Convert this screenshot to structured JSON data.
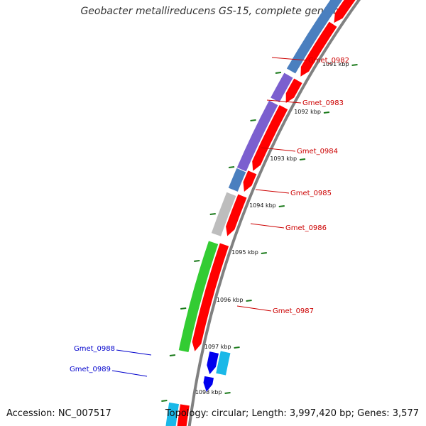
{
  "title": "Geobacter metallireducens GS-15, complete genome",
  "footer": {
    "accession": "Accession: NC_007517",
    "summary": "Topology: circular; Length: 3,997,420 bp; Genes: 3,577"
  },
  "ticks": [
    "1091 kbp",
    "1092 kbp",
    "1093 kbp",
    "1094 kbp",
    "1095 kbp",
    "1096 kbp",
    "1097 kbp",
    "1098 kbp"
  ],
  "colors": {
    "backbone": "#808080",
    "tick": "#1a7a1a",
    "forward_label": "#cc0000",
    "reverse_label": "#0000cc",
    "cds_forward": "#ff0000",
    "cds_reverse": "#0000ee",
    "blast_blue": "#4a7fbf",
    "blast_purple": "#7b5fcf",
    "blast_gray": "#bdbdbd",
    "blast_green": "#33cc33",
    "blast_cyan": "#1ab8e8"
  },
  "genes": [
    {
      "name": "Gmet_0982",
      "strand": "forward",
      "category": "blue"
    },
    {
      "name": "Gmet_0983",
      "strand": "forward",
      "category": "purple"
    },
    {
      "name": "Gmet_0984",
      "strand": "forward",
      "category": "purple"
    },
    {
      "name": "Gmet_0985",
      "strand": "forward",
      "category": "blue"
    },
    {
      "name": "Gmet_0986",
      "strand": "forward",
      "category": "gray"
    },
    {
      "name": "Gmet_0987",
      "strand": "forward",
      "category": "green"
    },
    {
      "name": "Gmet_0988",
      "strand": "reverse",
      "category": "cyan"
    },
    {
      "name": "Gmet_0989",
      "strand": "reverse",
      "category": "none"
    }
  ]
}
